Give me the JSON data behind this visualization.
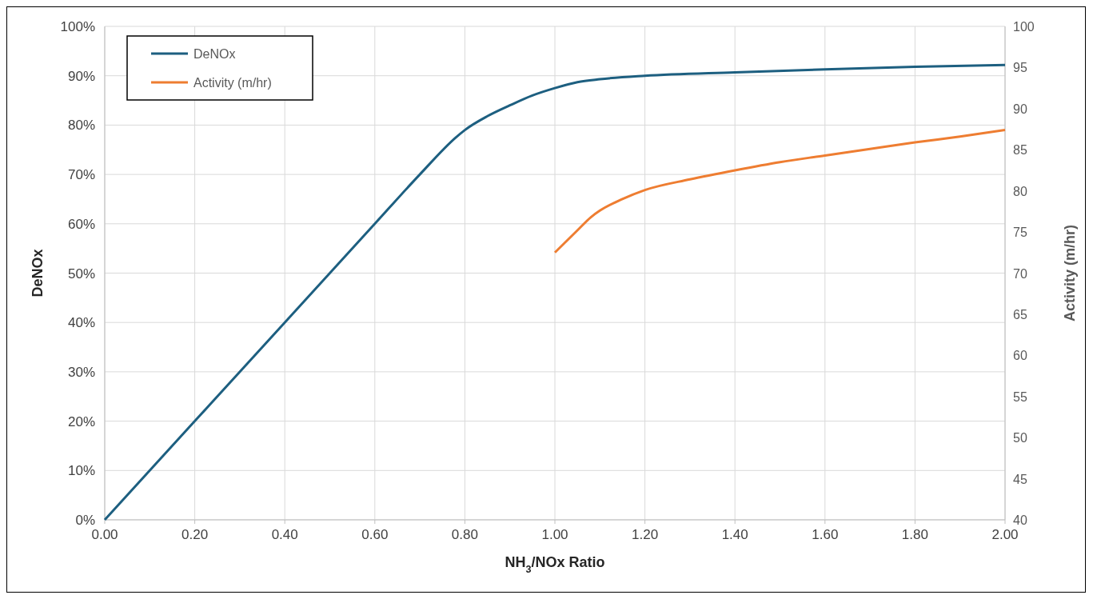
{
  "chart_data": {
    "type": "line",
    "xlabel": "NH$_{3}$/NOx Ratio",
    "ylabel": "DeNOx",
    "y2label": "Activity (m/hr)",
    "xlim": [
      0,
      2
    ],
    "xticks": [
      {
        "value": 0,
        "label": "0.00"
      },
      {
        "value": 0.2,
        "label": "0.20"
      },
      {
        "value": 0.4,
        "label": "0.40"
      },
      {
        "value": 0.6,
        "label": "0.60"
      },
      {
        "value": 0.8,
        "label": "0.80"
      },
      {
        "value": 1,
        "label": "1.00"
      },
      {
        "value": 1.2,
        "label": "1.20"
      },
      {
        "value": 1.4,
        "label": "1.40"
      },
      {
        "value": 1.6,
        "label": "1.60"
      },
      {
        "value": 1.8,
        "label": "1.80"
      },
      {
        "value": 2,
        "label": "2.00"
      }
    ],
    "ylim": [
      0,
      100
    ],
    "yticks": [
      {
        "value": 0,
        "label": "0%"
      },
      {
        "value": 10,
        "label": "10%"
      },
      {
        "value": 20,
        "label": "20%"
      },
      {
        "value": 30,
        "label": "30%"
      },
      {
        "value": 40,
        "label": "40%"
      },
      {
        "value": 50,
        "label": "50%"
      },
      {
        "value": 60,
        "label": "60%"
      },
      {
        "value": 70,
        "label": "70%"
      },
      {
        "value": 80,
        "label": "80%"
      },
      {
        "value": 90,
        "label": "90%"
      },
      {
        "value": 100,
        "label": "100%"
      }
    ],
    "y2lim": [
      40,
      100
    ],
    "y2ticks": [
      40,
      45,
      50,
      55,
      60,
      65,
      70,
      75,
      80,
      85,
      90,
      95,
      100
    ],
    "grid": true,
    "legend": "top left",
    "marker": "none",
    "line_style": "solid",
    "series": [
      {
        "name": "DeNOx",
        "color": "#1d5f80",
        "x": [
          0,
          0.2,
          0.4,
          0.6,
          0.7,
          0.78,
          0.8,
          0.85,
          0.9,
          0.95,
          1.0,
          1.05,
          1.1,
          1.2,
          1.4,
          1.6,
          1.8,
          2.0
        ],
        "values": [
          0,
          20,
          40,
          60,
          70,
          77.5,
          79,
          81.8,
          84,
          86,
          87.5,
          88.7,
          89.3,
          90,
          90.7,
          91.3,
          91.8,
          92.2
        ]
      },
      {
        "name": "Activity (m/hr)",
        "color": "#ee7d31",
        "axis": "y2",
        "x": [
          1.0,
          1.05,
          1.08,
          1.1,
          1.15,
          1.2,
          1.3,
          1.4,
          1.5,
          1.6,
          1.7,
          1.8,
          1.9,
          2.0
        ],
        "values": [
          72.5,
          75.2,
          76.8,
          77.6,
          79,
          80.1,
          81.4,
          82.5,
          83.5,
          84.3,
          85.1,
          85.9,
          86.6,
          87.4
        ]
      }
    ]
  }
}
